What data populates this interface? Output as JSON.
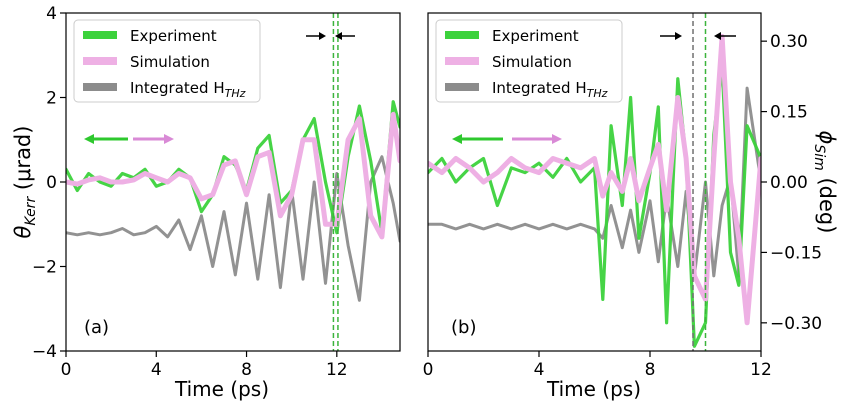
{
  "figure": {
    "ylabel_left_main": "θ",
    "ylabel_left_sub": "Kerr",
    "ylabel_left_unit": " (μrad)",
    "ylabel_right_main": "ϕ",
    "ylabel_right_sub": "Sim",
    "ylabel_right_unit": " (deg)",
    "xlabel": "Time (ps)"
  },
  "colors": {
    "experiment": "#3cd23c",
    "simulation": "#eeb0e4",
    "integrated": "#8c8c8c",
    "arrow_green": "#2ec82e",
    "arrow_pink": "#d98ad6",
    "marker_green": "#3cb43c",
    "marker_gray": "#707070"
  },
  "chart_data": [
    {
      "type": "line",
      "panel_label": "(a)",
      "xlabel": "Time (ps)",
      "ylabel": "θKerr (μrad)",
      "xlim": [
        0,
        14.8
      ],
      "ylim": [
        -4,
        4
      ],
      "xticks": [
        0,
        4,
        8,
        12
      ],
      "yticks": [
        -4,
        -2,
        0,
        2,
        4
      ],
      "xtick_labels": [
        "0",
        "4",
        "8",
        "12"
      ],
      "ytick_labels": [
        "−4",
        "−2",
        "0",
        "2",
        "4"
      ],
      "legend": {
        "position": "top-left",
        "entries": [
          "Experiment",
          "Simulation",
          "Integrated H",
          "THz"
        ]
      },
      "vlines": [
        11.85,
        12.05
      ],
      "series": [
        {
          "name": "Experiment",
          "x": [
            0,
            0.5,
            1,
            1.5,
            2,
            2.5,
            3,
            3.5,
            4,
            4.5,
            5,
            5.5,
            6,
            6.5,
            7,
            7.5,
            8,
            8.5,
            9,
            9.5,
            10,
            10.5,
            11,
            11.5,
            12,
            12.5,
            13,
            13.5,
            14,
            14.5,
            14.8
          ],
          "y": [
            0.3,
            -0.2,
            0.2,
            0.0,
            -0.1,
            0.2,
            0.1,
            0.3,
            -0.1,
            0.0,
            0.3,
            0.1,
            -0.7,
            -0.3,
            0.6,
            0.4,
            -0.2,
            0.8,
            1.1,
            -0.5,
            -0.2,
            1.0,
            1.5,
            0.0,
            -1.2,
            0.6,
            1.8,
            0.5,
            -1.2,
            1.9,
            1.3
          ]
        },
        {
          "name": "Simulation",
          "x": [
            0,
            0.5,
            1,
            1.5,
            2,
            2.5,
            3,
            3.5,
            4,
            4.5,
            5,
            5.5,
            6,
            6.5,
            7,
            7.5,
            8,
            8.5,
            9,
            9.5,
            10,
            10.5,
            11,
            11.5,
            12,
            12.5,
            13,
            13.5,
            14,
            14.5,
            14.8
          ],
          "y": [
            0.0,
            -0.05,
            0.05,
            0.1,
            0.0,
            0.0,
            0.05,
            0.2,
            0.1,
            0.0,
            0.2,
            0.1,
            -0.4,
            -0.3,
            0.4,
            0.5,
            -0.3,
            0.6,
            0.7,
            -0.8,
            -0.3,
            1.0,
            1.0,
            -1.0,
            -1.0,
            1.0,
            1.5,
            -0.8,
            -1.3,
            1.6,
            0.5
          ]
        },
        {
          "name": "Integrated H_THz",
          "x": [
            0,
            0.5,
            1,
            1.5,
            2,
            2.5,
            3,
            3.5,
            4,
            4.5,
            5,
            5.5,
            6,
            6.5,
            7,
            7.5,
            8,
            8.5,
            9,
            9.5,
            10,
            10.5,
            11,
            11.5,
            12,
            12.5,
            13,
            13.5,
            14,
            14.5,
            14.8
          ],
          "y": [
            -1.2,
            -1.25,
            -1.2,
            -1.25,
            -1.2,
            -1.1,
            -1.25,
            -1.2,
            -1.05,
            -1.3,
            -0.9,
            -1.6,
            -0.8,
            -2.0,
            -0.7,
            -2.2,
            -0.5,
            -2.3,
            -0.3,
            -2.5,
            -0.2,
            -2.3,
            0.0,
            -2.4,
            0.2,
            -1.5,
            -2.8,
            0.0,
            0.6,
            -0.5,
            -1.4
          ]
        }
      ]
    },
    {
      "type": "line",
      "panel_label": "(b)",
      "xlabel": "Time (ps)",
      "ylabel": "ϕSim (deg)",
      "xlim": [
        0,
        12
      ],
      "ylim": [
        -0.36,
        0.36
      ],
      "xticks": [
        0,
        4,
        8,
        12
      ],
      "yticks": [
        -0.3,
        -0.15,
        0.0,
        0.15,
        0.3
      ],
      "xtick_labels": [
        "0",
        "4",
        "8",
        "12"
      ],
      "ytick_labels": [
        "−0.30",
        "−0.15",
        "0.00",
        "0.15",
        "0.30"
      ],
      "legend": {
        "position": "top-left",
        "entries": [
          "Experiment",
          "Simulation",
          "Integrated H",
          "THz"
        ]
      },
      "vlines": [
        9.55,
        10.0
      ],
      "series": [
        {
          "name": "Experiment",
          "x": [
            0,
            0.5,
            1,
            1.5,
            2,
            2.5,
            3,
            3.5,
            4,
            4.5,
            5,
            5.5,
            6,
            6.3,
            6.6,
            7,
            7.3,
            7.6,
            8,
            8.3,
            8.6,
            9,
            9.3,
            9.6,
            10,
            10.3,
            10.6,
            10.9,
            11.2,
            11.5,
            12
          ],
          "y": [
            0.02,
            0.05,
            0.0,
            0.03,
            0.05,
            -0.05,
            0.03,
            0.02,
            0.04,
            0.01,
            0.05,
            0.0,
            0.03,
            -0.25,
            0.12,
            -0.05,
            0.18,
            -0.12,
            0.02,
            0.16,
            -0.3,
            0.22,
            0.05,
            -0.35,
            -0.3,
            0.1,
            0.25,
            -0.15,
            -0.22,
            0.12,
            0.05
          ]
        },
        {
          "name": "Simulation",
          "x": [
            0,
            0.5,
            1,
            1.5,
            2,
            2.5,
            3,
            3.5,
            4,
            4.5,
            5,
            5.5,
            6,
            6.3,
            6.6,
            7,
            7.3,
            7.6,
            8,
            8.3,
            8.6,
            9,
            9.3,
            9.6,
            10,
            10.3,
            10.6,
            10.9,
            11.2,
            11.5,
            12
          ],
          "y": [
            0.04,
            0.02,
            0.05,
            0.03,
            0.0,
            0.02,
            0.05,
            0.03,
            0.02,
            0.05,
            0.04,
            0.03,
            0.05,
            -0.03,
            0.02,
            -0.02,
            0.05,
            -0.04,
            0.03,
            0.08,
            -0.06,
            0.18,
            0.05,
            -0.2,
            -0.25,
            0.05,
            0.31,
            0.0,
            -0.12,
            -0.3,
            0.05
          ]
        },
        {
          "name": "Integrated H_THz",
          "x": [
            0,
            0.5,
            1,
            1.5,
            2,
            2.5,
            3,
            3.5,
            4,
            4.5,
            5,
            5.5,
            6,
            6.3,
            6.6,
            7,
            7.3,
            7.6,
            8,
            8.3,
            8.6,
            9,
            9.3,
            9.6,
            10,
            10.3,
            10.6,
            10.9,
            11.2,
            11.5,
            12
          ],
          "y": [
            -0.09,
            -0.09,
            -0.1,
            -0.09,
            -0.1,
            -0.09,
            -0.1,
            -0.09,
            -0.1,
            -0.09,
            -0.1,
            -0.09,
            -0.1,
            -0.12,
            -0.05,
            -0.14,
            -0.06,
            -0.15,
            -0.04,
            -0.17,
            -0.03,
            -0.18,
            -0.02,
            -0.2,
            0.0,
            -0.2,
            -0.05,
            0.01,
            -0.2,
            0.2,
            0.0
          ]
        }
      ]
    }
  ]
}
